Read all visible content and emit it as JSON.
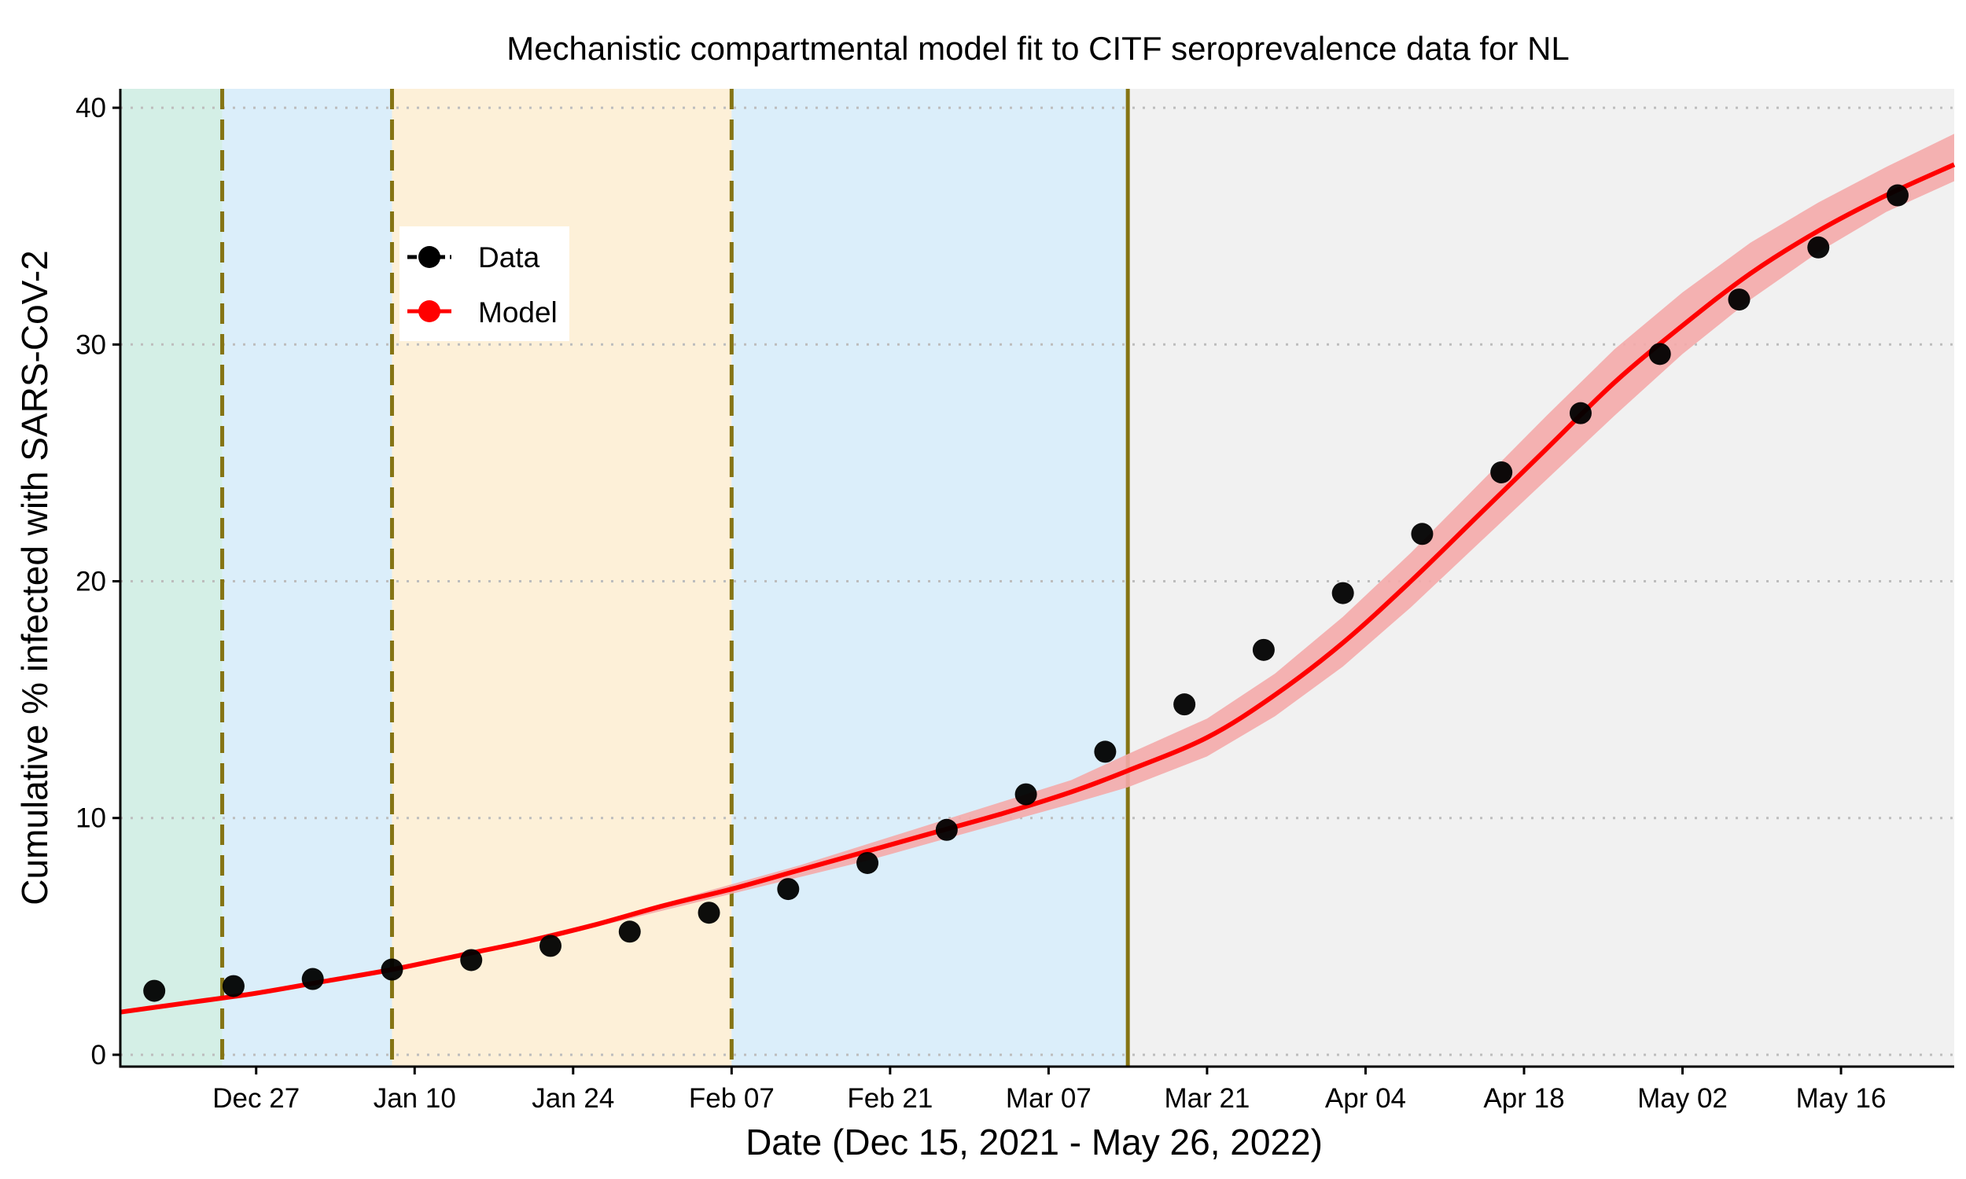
{
  "chart_data": {
    "type": "line",
    "title": "Mechanistic compartmental model fit to CITF seroprevalence data for NL",
    "xlabel": "Date (Dec 15, 2021 - May 26, 2022)",
    "ylabel": "Cumulative % infected with SARS-CoV-2",
    "x_start": "2021-12-15",
    "x_range": [
      "2021-12-15",
      "2022-05-26"
    ],
    "ylim": [
      -0.5,
      40.8
    ],
    "y_ticks": [
      0,
      10,
      20,
      30,
      40
    ],
    "x_ticks": [
      {
        "date": "2021-12-27",
        "label": "Dec 27"
      },
      {
        "date": "2022-01-10",
        "label": "Jan 10"
      },
      {
        "date": "2022-01-24",
        "label": "Jan 24"
      },
      {
        "date": "2022-02-07",
        "label": "Feb 07"
      },
      {
        "date": "2022-02-21",
        "label": "Feb 21"
      },
      {
        "date": "2022-03-07",
        "label": "Mar 07"
      },
      {
        "date": "2022-03-21",
        "label": "Mar 21"
      },
      {
        "date": "2022-04-04",
        "label": "Apr 04"
      },
      {
        "date": "2022-04-18",
        "label": "Apr 18"
      },
      {
        "date": "2022-05-02",
        "label": "May 02"
      },
      {
        "date": "2022-05-16",
        "label": "May 16"
      }
    ],
    "grid": "horizontal dotted",
    "legend_position": "upper-left",
    "background_periods": [
      {
        "start": "2021-12-15",
        "end": "2021-12-24",
        "color": "#d4efe6"
      },
      {
        "start": "2021-12-24",
        "end": "2022-01-08",
        "color": "#dbeefa"
      },
      {
        "start": "2022-01-08",
        "end": "2022-02-07",
        "color": "#fdf0d8"
      },
      {
        "start": "2022-02-07",
        "end": "2022-03-14",
        "color": "#dbeefa"
      },
      {
        "start": "2022-03-14",
        "end": "2022-05-26",
        "color": "#f1f1f1"
      }
    ],
    "vertical_lines": [
      {
        "date": "2021-12-24",
        "style": "dashed",
        "color": "#857414"
      },
      {
        "date": "2022-01-08",
        "style": "dashed",
        "color": "#857414"
      },
      {
        "date": "2022-02-07",
        "style": "dashed",
        "color": "#857414"
      },
      {
        "date": "2022-03-14",
        "style": "solid",
        "color": "#857414"
      }
    ],
    "series": [
      {
        "name": "Data",
        "type": "scatter",
        "color": "#000000",
        "x": [
          "2021-12-18",
          "2021-12-25",
          "2022-01-01",
          "2022-01-08",
          "2022-01-15",
          "2022-01-22",
          "2022-01-29",
          "2022-02-05",
          "2022-02-12",
          "2022-02-19",
          "2022-02-26",
          "2022-03-05",
          "2022-03-12",
          "2022-03-19",
          "2022-03-26",
          "2022-04-02",
          "2022-04-09",
          "2022-04-16",
          "2022-04-23",
          "2022-04-30",
          "2022-05-07",
          "2022-05-14",
          "2022-05-21"
        ],
        "values": [
          2.7,
          2.9,
          3.2,
          3.6,
          4.0,
          4.6,
          5.2,
          6.0,
          7.0,
          8.1,
          9.5,
          11.0,
          12.8,
          14.8,
          17.1,
          19.5,
          22.0,
          24.6,
          27.1,
          29.6,
          31.9,
          34.1,
          36.3
        ]
      },
      {
        "name": "Model",
        "type": "line",
        "color": "#ff0000",
        "band_color": "#f4aaaa",
        "x": [
          "2021-12-15",
          "2021-12-21",
          "2021-12-27",
          "2022-01-02",
          "2022-01-08",
          "2022-01-14",
          "2022-01-20",
          "2022-01-26",
          "2022-02-01",
          "2022-02-07",
          "2022-02-13",
          "2022-02-19",
          "2022-02-25",
          "2022-03-03",
          "2022-03-09",
          "2022-03-14",
          "2022-03-21",
          "2022-03-27",
          "2022-04-02",
          "2022-04-08",
          "2022-04-14",
          "2022-04-20",
          "2022-04-26",
          "2022-05-02",
          "2022-05-08",
          "2022-05-14",
          "2022-05-20",
          "2022-05-26"
        ],
        "values": [
          1.8,
          2.2,
          2.6,
          3.1,
          3.6,
          4.2,
          4.8,
          5.5,
          6.3,
          7.0,
          7.8,
          8.6,
          9.4,
          10.2,
          11.1,
          12.0,
          13.4,
          15.2,
          17.4,
          20.0,
          22.8,
          25.6,
          28.4,
          30.8,
          33.0,
          34.8,
          36.3,
          37.6
        ],
        "lower": [
          1.8,
          2.2,
          2.6,
          3.1,
          3.6,
          4.2,
          4.8,
          5.4,
          6.1,
          6.8,
          7.5,
          8.2,
          9.0,
          9.8,
          10.6,
          11.3,
          12.6,
          14.3,
          16.4,
          18.9,
          21.6,
          24.3,
          27.0,
          29.6,
          31.9,
          33.9,
          35.6,
          36.9
        ],
        "upper": [
          1.8,
          2.2,
          2.6,
          3.1,
          3.6,
          4.2,
          4.9,
          5.6,
          6.4,
          7.2,
          8.0,
          8.9,
          9.8,
          10.7,
          11.6,
          12.7,
          14.2,
          16.1,
          18.5,
          21.2,
          24.1,
          27.0,
          29.8,
          32.2,
          34.3,
          36.0,
          37.5,
          38.9
        ]
      }
    ],
    "legend": [
      "Data",
      "Model"
    ]
  }
}
